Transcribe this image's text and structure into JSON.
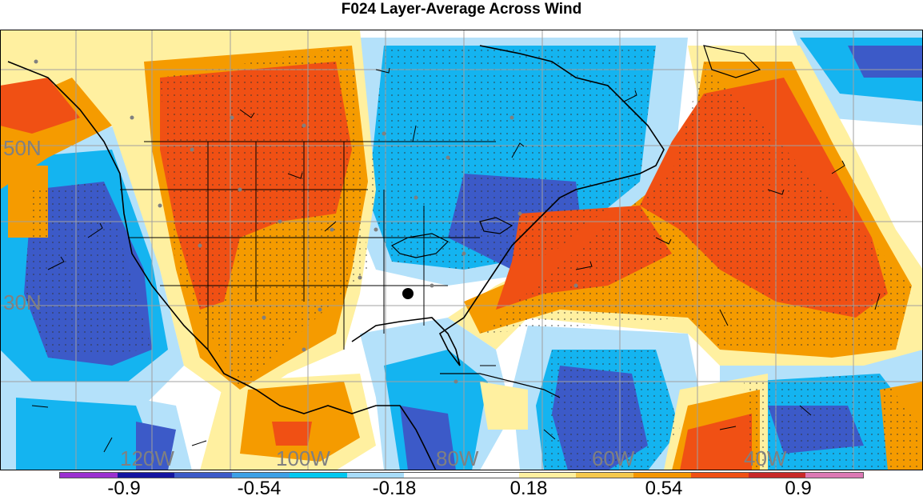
{
  "title": "F024 Layer-Average Across Wind",
  "map": {
    "lat_labels": [
      "50N",
      "30N"
    ],
    "lon_labels": [
      "120W",
      "100W",
      "80W",
      "60W",
      "40W"
    ]
  },
  "colorbar": {
    "ticks": [
      "-0.9",
      "-0.54",
      "-0.18",
      "0.18",
      "0.54",
      "0.9"
    ],
    "colors": [
      "#9b30d0",
      "#1414a0",
      "#3c5ac8",
      "#3ca0e6",
      "#00c8f0",
      "#a8dcf8",
      "#ffffff",
      "#ffffff",
      "#fff0a0",
      "#f5c84c",
      "#f59600",
      "#f05014",
      "#c82828",
      "#dc78b4"
    ]
  },
  "colors": {
    "strong_negative": "#3c5ac8",
    "negative": "#14b4f0",
    "weak_negative": "#b4e1fa",
    "weak_positive": "#fff0a0",
    "positive": "#f59b00",
    "strong_positive": "#f05014"
  },
  "marker": {
    "name": "station-marker",
    "description_color": "#000000"
  }
}
